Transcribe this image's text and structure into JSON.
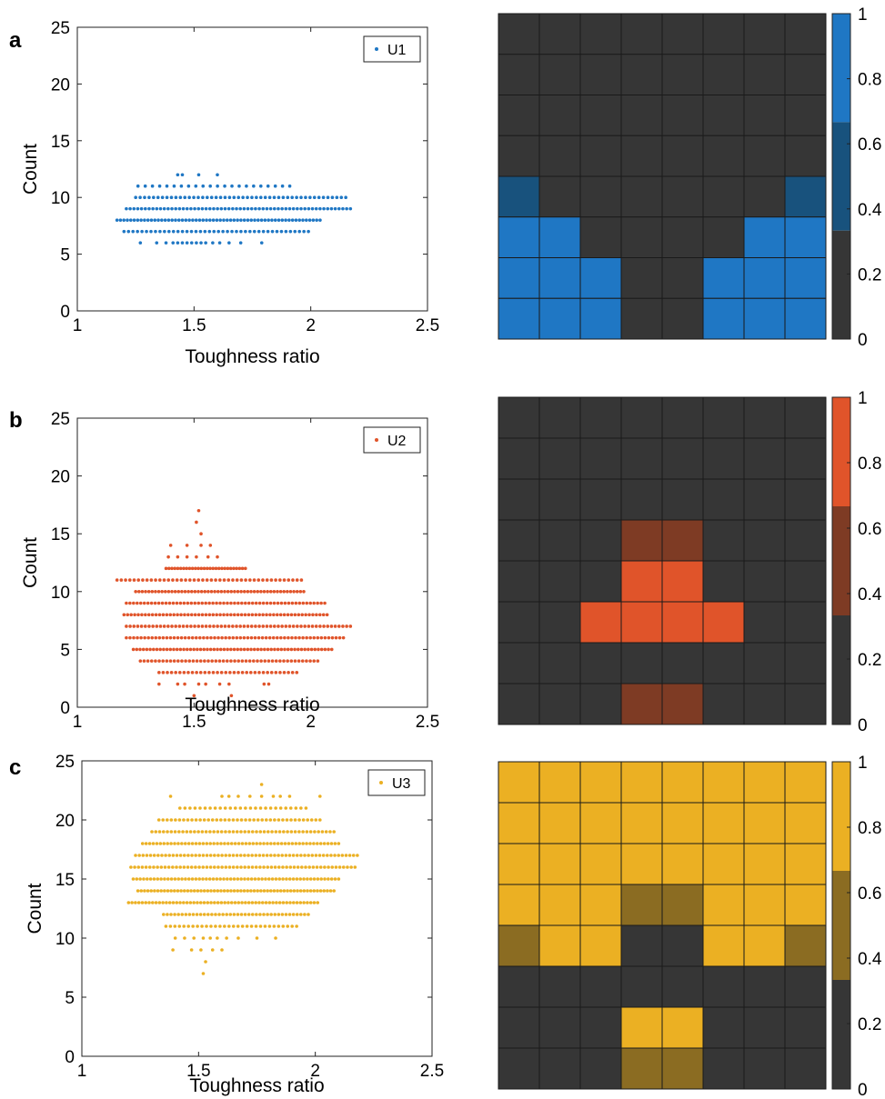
{
  "panels": [
    {
      "letter": "a",
      "color": "#1f77c4"
    },
    {
      "letter": "b",
      "color": "#e0542a"
    },
    {
      "letter": "c",
      "color": "#ebb023"
    }
  ],
  "chart_data": [
    {
      "type": "scatter",
      "panel": "a",
      "xlabel": "Toughness ratio",
      "ylabel": "Count",
      "xlim": [
        1,
        2.5
      ],
      "ylim": [
        0,
        25
      ],
      "xticks": [
        "1",
        "1.5",
        "2",
        "2.5"
      ],
      "yticks": [
        "0",
        "5",
        "10",
        "15",
        "20",
        "25"
      ],
      "legend": "top-right",
      "series": [
        {
          "name": "U1",
          "color": "#1f77c4",
          "rows": [
            {
              "y": 6,
              "x": [
                1.27,
                1.34,
                1.38,
                1.41,
                1.43,
                1.45,
                1.47,
                1.49,
                1.51,
                1.53,
                1.55,
                1.58,
                1.61,
                1.65,
                1.7,
                1.79
              ]
            },
            {
              "y": 7,
              "density": 42,
              "x": [
                1.2,
                1.99
              ]
            },
            {
              "y": 8,
              "density": 60,
              "x": [
                1.17,
                2.04
              ]
            },
            {
              "y": 9,
              "density": 60,
              "x": [
                1.21,
                2.17
              ]
            },
            {
              "y": 10,
              "density": 48,
              "x": [
                1.25,
                2.15
              ]
            },
            {
              "y": 11,
              "density": 22,
              "x": [
                1.26,
                1.91
              ]
            },
            {
              "y": 12,
              "x": [
                1.43,
                1.45,
                1.52,
                1.6
              ]
            }
          ]
        }
      ],
      "grid": false
    },
    {
      "type": "heatmap",
      "panel": "a",
      "colorbar": {
        "range": [
          0,
          1
        ],
        "ticks": [
          "0",
          "0.2",
          "0.4",
          "0.6",
          "0.8",
          "1"
        ],
        "colors": [
          "#363636",
          "#18527d",
          "#1f77c4"
        ]
      },
      "matrix": [
        [
          0,
          0,
          0,
          0,
          0,
          0,
          0,
          0
        ],
        [
          0,
          0,
          0,
          0,
          0,
          0,
          0,
          0
        ],
        [
          0,
          0,
          0,
          0,
          0,
          0,
          0,
          0
        ],
        [
          0,
          0,
          0,
          0,
          0,
          0,
          0,
          0
        ],
        [
          0.5,
          0,
          0,
          0,
          0,
          0,
          0,
          0.5
        ],
        [
          1,
          1,
          0,
          0,
          0,
          0,
          1,
          1
        ],
        [
          1,
          1,
          1,
          0,
          0,
          1,
          1,
          1
        ],
        [
          1,
          1,
          1,
          0,
          0,
          1,
          1,
          1
        ]
      ]
    },
    {
      "type": "scatter",
      "panel": "b",
      "xlabel": "Toughness ratio",
      "ylabel": "Count",
      "xlim": [
        1,
        2.5
      ],
      "ylim": [
        0,
        25
      ],
      "xticks": [
        "1",
        "1.5",
        "2",
        "2.5"
      ],
      "yticks": [
        "0",
        "5",
        "10",
        "15",
        "20",
        "25"
      ],
      "legend": "top-right",
      "series": [
        {
          "name": "U2",
          "color": "#e0542a",
          "rows": [
            {
              "y": 1,
              "x": [
                1.5,
                1.66
              ]
            },
            {
              "y": 2,
              "x": [
                1.35,
                1.43,
                1.46,
                1.52,
                1.55,
                1.61,
                1.65,
                1.8,
                1.82
              ]
            },
            {
              "y": 3,
              "density": 34,
              "x": [
                1.35,
                1.94
              ]
            },
            {
              "y": 4,
              "density": 48,
              "x": [
                1.27,
                2.03
              ]
            },
            {
              "y": 5,
              "density": 60,
              "x": [
                1.24,
                2.09
              ]
            },
            {
              "y": 6,
              "density": 60,
              "x": [
                1.21,
                2.14
              ]
            },
            {
              "y": 7,
              "density": 60,
              "x": [
                1.21,
                2.17
              ]
            },
            {
              "y": 8,
              "density": 58,
              "x": [
                1.2,
                2.07
              ]
            },
            {
              "y": 9,
              "density": 56,
              "x": [
                1.21,
                2.06
              ]
            },
            {
              "y": 10,
              "density": 52,
              "x": [
                1.25,
                1.97
              ]
            },
            {
              "y": 11,
              "density": 44,
              "x": [
                1.17,
                1.96
              ]
            },
            {
              "y": 12,
              "density": 28,
              "x": [
                1.38,
                1.72
              ]
            },
            {
              "y": 13,
              "x": [
                1.39,
                1.43,
                1.47,
                1.51,
                1.56,
                1.6
              ]
            },
            {
              "y": 14,
              "x": [
                1.4,
                1.47,
                1.53,
                1.57
              ]
            },
            {
              "y": 15,
              "x": [
                1.53
              ]
            },
            {
              "y": 16,
              "x": [
                1.51
              ]
            },
            {
              "y": 17,
              "x": [
                1.52
              ]
            }
          ]
        }
      ],
      "grid": false
    },
    {
      "type": "heatmap",
      "panel": "b",
      "colorbar": {
        "range": [
          0,
          1
        ],
        "ticks": [
          "0",
          "0.2",
          "0.4",
          "0.6",
          "0.8",
          "1"
        ],
        "colors": [
          "#363636",
          "#7e3b24",
          "#e0542a"
        ]
      },
      "matrix": [
        [
          0,
          0,
          0,
          0,
          0,
          0,
          0,
          0
        ],
        [
          0,
          0,
          0,
          0,
          0,
          0,
          0,
          0
        ],
        [
          0,
          0,
          0,
          0,
          0,
          0,
          0,
          0
        ],
        [
          0,
          0,
          0,
          0.5,
          0.5,
          0,
          0,
          0
        ],
        [
          0,
          0,
          0,
          1,
          1,
          0,
          0,
          0
        ],
        [
          0,
          0,
          1,
          1,
          1,
          1,
          0,
          0
        ],
        [
          0,
          0,
          0,
          0,
          0,
          0,
          0,
          0
        ],
        [
          0,
          0,
          0,
          0.5,
          0.5,
          0,
          0,
          0
        ]
      ]
    },
    {
      "type": "scatter",
      "panel": "c",
      "xlabel": "Toughness ratio",
      "ylabel": "Count",
      "xlim": [
        1,
        2.5
      ],
      "ylim": [
        0,
        25
      ],
      "xticks": [
        "1",
        "1.5",
        "2",
        "2.5"
      ],
      "yticks": [
        "0",
        "5",
        "10",
        "15",
        "20",
        "25"
      ],
      "legend": "top-right",
      "series": [
        {
          "name": "U3",
          "color": "#ebb023",
          "rows": [
            {
              "y": 7,
              "x": [
                1.52
              ]
            },
            {
              "y": 8,
              "x": [
                1.53
              ]
            },
            {
              "y": 9,
              "x": [
                1.39,
                1.47,
                1.51,
                1.56,
                1.6
              ]
            },
            {
              "y": 10,
              "x": [
                1.4,
                1.44,
                1.48,
                1.52,
                1.55,
                1.58,
                1.62,
                1.67,
                1.75,
                1.83
              ]
            },
            {
              "y": 11,
              "density": 30,
              "x": [
                1.36,
                1.92
              ]
            },
            {
              "y": 12,
              "density": 40,
              "x": [
                1.35,
                1.97
              ]
            },
            {
              "y": 13,
              "density": 56,
              "x": [
                1.2,
                2.01
              ]
            },
            {
              "y": 14,
              "density": 60,
              "x": [
                1.24,
                2.08
              ]
            },
            {
              "y": 15,
              "density": 60,
              "x": [
                1.22,
                2.1
              ]
            },
            {
              "y": 16,
              "density": 60,
              "x": [
                1.21,
                2.17
              ]
            },
            {
              "y": 17,
              "density": 60,
              "x": [
                1.23,
                2.18
              ]
            },
            {
              "y": 18,
              "density": 56,
              "x": [
                1.26,
                2.1
              ]
            },
            {
              "y": 19,
              "density": 48,
              "x": [
                1.3,
                2.08
              ]
            },
            {
              "y": 20,
              "density": 40,
              "x": [
                1.33,
                2.02
              ]
            },
            {
              "y": 21,
              "density": 26,
              "x": [
                1.42,
                1.96
              ]
            },
            {
              "y": 22,
              "x": [
                1.38,
                1.6,
                1.63,
                1.67,
                1.72,
                1.77,
                1.82,
                1.85,
                1.89,
                2.02
              ]
            },
            {
              "y": 23,
              "x": [
                1.77
              ]
            }
          ]
        }
      ],
      "grid": false
    },
    {
      "type": "heatmap",
      "panel": "c",
      "colorbar": {
        "range": [
          0,
          1
        ],
        "ticks": [
          "0",
          "0.2",
          "0.4",
          "0.6",
          "0.8",
          "1"
        ],
        "colors": [
          "#363636",
          "#8b6c22",
          "#ebb023"
        ]
      },
      "matrix": [
        [
          1,
          1,
          1,
          1,
          1,
          1,
          1,
          1
        ],
        [
          1,
          1,
          1,
          1,
          1,
          1,
          1,
          1
        ],
        [
          1,
          1,
          1,
          1,
          1,
          1,
          1,
          1
        ],
        [
          1,
          1,
          1,
          0.5,
          0.5,
          1,
          1,
          1
        ],
        [
          0.5,
          1,
          1,
          0,
          0,
          1,
          1,
          0.5
        ],
        [
          0,
          0,
          0,
          0,
          0,
          0,
          0,
          0
        ],
        [
          0,
          0,
          0,
          1,
          1,
          0,
          0,
          0
        ],
        [
          0,
          0,
          0,
          0.5,
          0.5,
          0,
          0,
          0
        ]
      ]
    }
  ]
}
